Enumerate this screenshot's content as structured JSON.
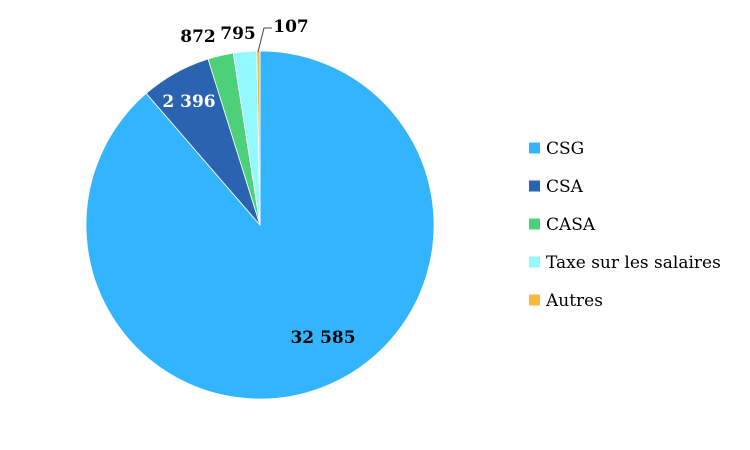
{
  "chart_data": {
    "type": "pie",
    "title": "",
    "categories": [
      "CSG",
      "CSA",
      "CASA",
      "Taxe sur les salaires",
      "Autres"
    ],
    "values": [
      32585,
      2396,
      872,
      795,
      107
    ],
    "value_labels": [
      "32 585",
      "2 396",
      "872",
      "795",
      "107"
    ],
    "colors": [
      "#33b4ff",
      "#2a63b0",
      "#4cd17a",
      "#94f8ff",
      "#f5b93b"
    ],
    "label_colors": [
      "#000000",
      "#ffffff",
      "#000000",
      "#000000",
      "#000000"
    ],
    "legend_position": "right",
    "start_angle_deg": 0,
    "direction": "clockwise"
  }
}
